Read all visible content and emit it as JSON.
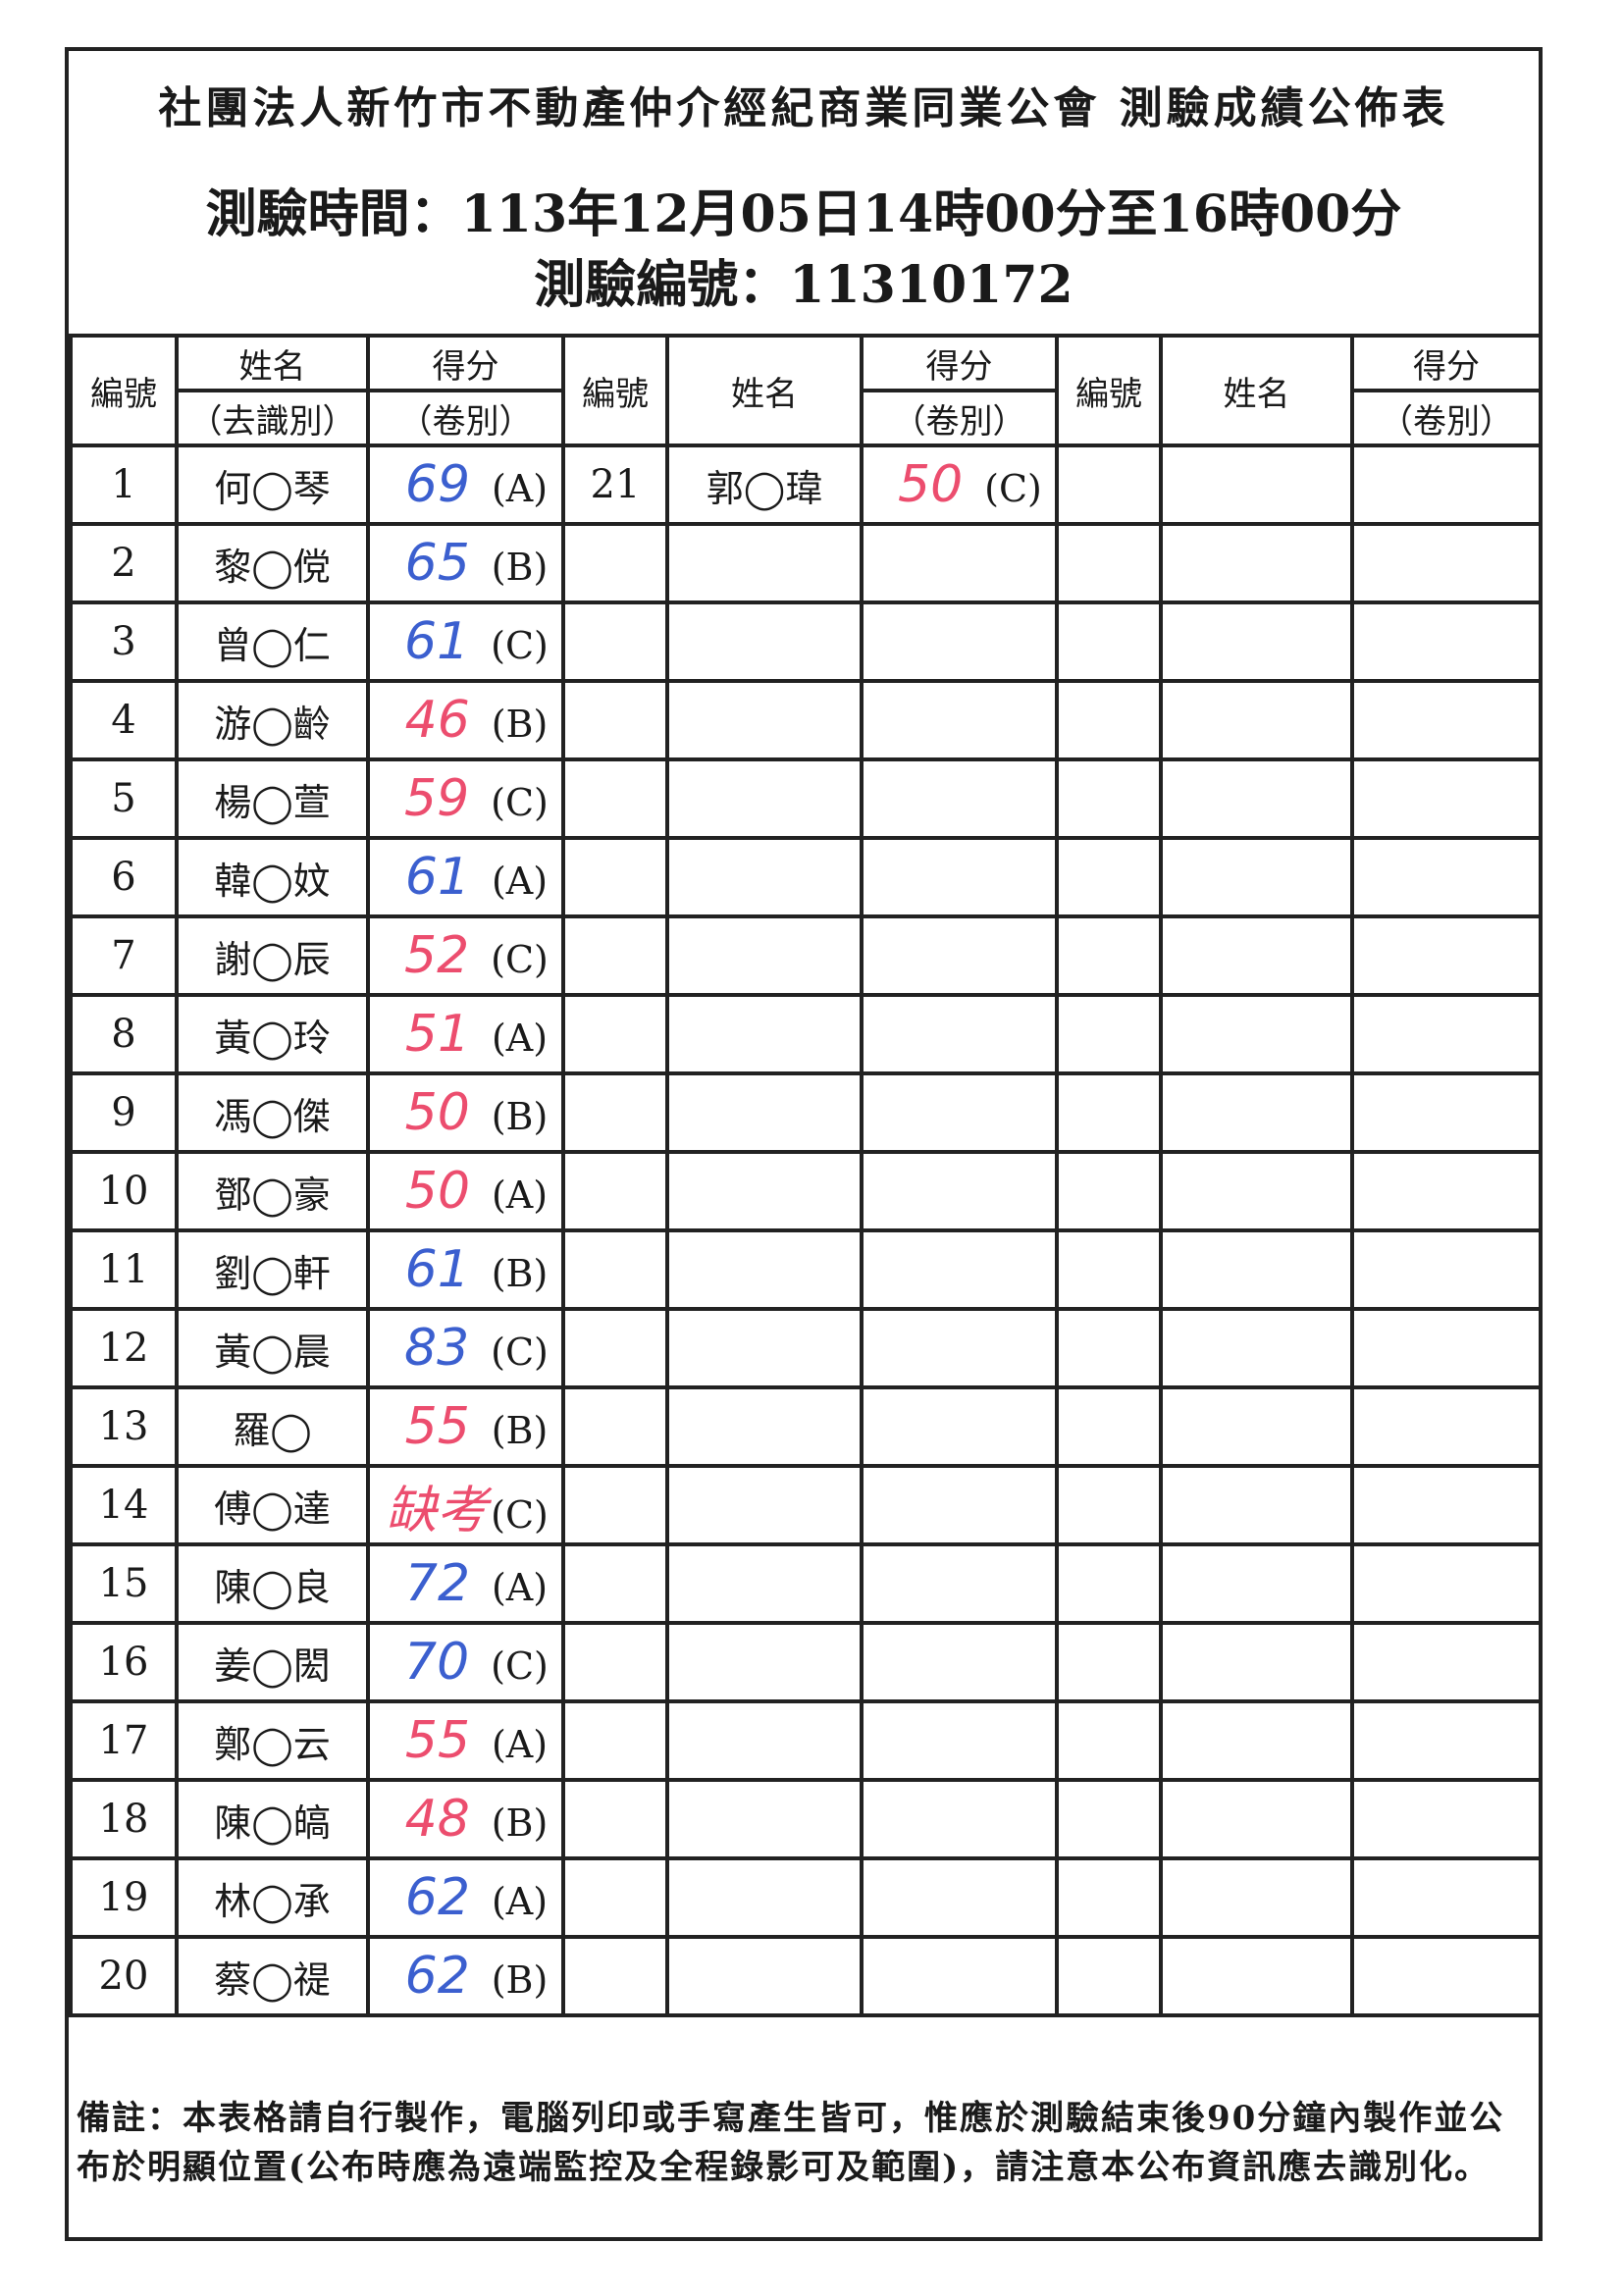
{
  "title": "社團法人新竹市不動產仲介經紀商業同業公會 測驗成績公佈表",
  "exam_time_label": "測驗時間：113年12月05日14時00分至16時00分",
  "exam_id_label": "測驗編號：11310172",
  "headers": {
    "no": "編號",
    "name": "姓名",
    "name_sub": "（去識別）",
    "score": "得分",
    "score_sub": "（卷別）"
  },
  "colors": {
    "blue": "#3b5fcf",
    "red": "#ec4d6e"
  },
  "rows": [
    {
      "no": "1",
      "name": "何◯琴",
      "score": "69",
      "paper": "(A)",
      "color": "#3b5fcf"
    },
    {
      "no": "2",
      "name": "黎◯傥",
      "score": "65",
      "paper": "(B)",
      "color": "#3b5fcf"
    },
    {
      "no": "3",
      "name": "曾◯仁",
      "score": "61",
      "paper": "(C)",
      "color": "#3b5fcf"
    },
    {
      "no": "4",
      "name": "游◯齡",
      "score": "46",
      "paper": "(B)",
      "color": "#ec4d6e"
    },
    {
      "no": "5",
      "name": "楊◯萱",
      "score": "59",
      "paper": "(C)",
      "color": "#ec4d6e"
    },
    {
      "no": "6",
      "name": "韓◯妏",
      "score": "61",
      "paper": "(A)",
      "color": "#3b5fcf"
    },
    {
      "no": "7",
      "name": "謝◯辰",
      "score": "52",
      "paper": "(C)",
      "color": "#ec4d6e"
    },
    {
      "no": "8",
      "name": "黃◯玲",
      "score": "51",
      "paper": "(A)",
      "color": "#ec4d6e"
    },
    {
      "no": "9",
      "name": "馮◯傑",
      "score": "50",
      "paper": "(B)",
      "color": "#ec4d6e"
    },
    {
      "no": "10",
      "name": "鄧◯豪",
      "score": "50",
      "paper": "(A)",
      "color": "#ec4d6e"
    },
    {
      "no": "11",
      "name": "劉◯軒",
      "score": "61",
      "paper": "(B)",
      "color": "#3b5fcf"
    },
    {
      "no": "12",
      "name": "黃◯晨",
      "score": "83",
      "paper": "(C)",
      "color": "#3b5fcf"
    },
    {
      "no": "13",
      "name": "羅◯",
      "score": "55",
      "paper": "(B)",
      "color": "#ec4d6e"
    },
    {
      "no": "14",
      "name": "傅◯達",
      "score": "缺考",
      "paper": "(C)",
      "color": "#ec4d6e"
    },
    {
      "no": "15",
      "name": "陳◯良",
      "score": "72",
      "paper": "(A)",
      "color": "#3b5fcf"
    },
    {
      "no": "16",
      "name": "姜◯閎",
      "score": "70",
      "paper": "(C)",
      "color": "#3b5fcf"
    },
    {
      "no": "17",
      "name": "鄭◯云",
      "score": "55",
      "paper": "(A)",
      "color": "#ec4d6e"
    },
    {
      "no": "18",
      "name": "陳◯皜",
      "score": "48",
      "paper": "(B)",
      "color": "#ec4d6e"
    },
    {
      "no": "19",
      "name": "林◯承",
      "score": "62",
      "paper": "(A)",
      "color": "#3b5fcf"
    },
    {
      "no": "20",
      "name": "蔡◯禔",
      "score": "62",
      "paper": "(B)",
      "color": "#3b5fcf"
    }
  ],
  "rows2": [
    {
      "no": "21",
      "name": "郭◯瑋",
      "score": "50",
      "paper": "(C)",
      "color": "#ec4d6e"
    }
  ],
  "note": "備註：本表格請自行製作，電腦列印或手寫產生皆可，惟應於測驗結束後90分鐘內製作並公布於明顯位置(公布時應為遠端監控及全程錄影可及範圍)，請注意本公布資訊應去識別化。"
}
